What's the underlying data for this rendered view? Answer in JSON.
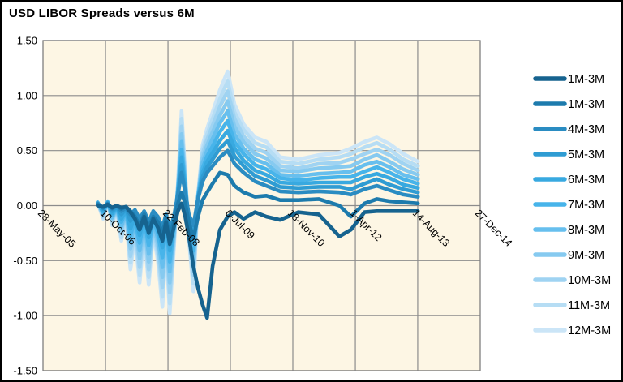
{
  "title": "USD LIBOR Spreads versus 6M",
  "colors": {
    "plot_bg": "#fdf6e4",
    "grid": "#8c8c8c",
    "plot_border": "#7f7f7f",
    "outer_border": "#000000",
    "text": "#000000"
  },
  "chart_data": {
    "type": "line",
    "title": "USD LIBOR Spreads versus 6M",
    "xlabel": "",
    "ylabel": "",
    "grid": true,
    "legend_position": "right",
    "ylim": [
      -1.5,
      1.5
    ],
    "xlim": [
      2005.403,
      2014.986
    ],
    "y_tick_labels": [
      "1.50",
      "1.00",
      "0.50",
      "0.00",
      "-0.50",
      "-1.00",
      "-1.50"
    ],
    "y_tick_values": [
      1.5,
      1.0,
      0.5,
      0.0,
      -0.5,
      -1.0,
      -1.5
    ],
    "x_tick_labels": [
      "28-May-05",
      "10-Oct-06",
      "22-Feb-08",
      "6-Jul-09",
      "18-Nov-10",
      "1-Apr-12",
      "14-Aug-13",
      "27-Dec-14"
    ],
    "x_tick_values": [
      2005.403,
      2006.773,
      2008.142,
      2009.51,
      2010.879,
      2012.249,
      2013.616,
      2014.986
    ],
    "x": [
      2006.6,
      2006.72,
      2006.82,
      2006.92,
      2007.02,
      2007.12,
      2007.22,
      2007.32,
      2007.42,
      2007.52,
      2007.62,
      2007.72,
      2007.82,
      2007.92,
      2008.02,
      2008.1,
      2008.18,
      2008.27,
      2008.36,
      2008.44,
      2008.52,
      2008.6,
      2008.7,
      2008.8,
      2008.9,
      2009.0,
      2009.12,
      2009.28,
      2009.45,
      2009.6,
      2009.8,
      2010.05,
      2010.3,
      2010.6,
      2011.0,
      2011.45,
      2011.9,
      2012.15,
      2012.45,
      2012.72,
      2013.0,
      2013.3,
      2013.62
    ],
    "series": [
      {
        "name": "1M-3M",
        "color": "#16638f",
        "values": [
          0.0,
          -0.01,
          0.01,
          -0.02,
          0.0,
          -0.02,
          -0.01,
          -0.06,
          -0.12,
          -0.22,
          -0.1,
          -0.25,
          -0.12,
          -0.2,
          -0.32,
          -0.15,
          -0.35,
          -0.2,
          -0.05,
          0.02,
          -0.1,
          -0.28,
          -0.55,
          -0.75,
          -0.9,
          -1.02,
          -0.55,
          -0.22,
          -0.1,
          -0.06,
          -0.12,
          -0.06,
          -0.1,
          -0.13,
          -0.06,
          -0.08,
          -0.28,
          -0.22,
          -0.06,
          -0.05,
          -0.05,
          -0.05,
          -0.05
        ]
      },
      {
        "name": "1M-3M",
        "color": "#1d7bad",
        "values": [
          0.01,
          -0.02,
          0.01,
          -0.02,
          0.0,
          -0.03,
          -0.01,
          -0.05,
          -0.1,
          -0.18,
          -0.08,
          -0.2,
          -0.1,
          -0.15,
          -0.25,
          -0.12,
          -0.28,
          -0.15,
          0.02,
          0.12,
          0.02,
          -0.15,
          -0.3,
          -0.1,
          0.05,
          0.12,
          0.2,
          0.3,
          0.28,
          0.18,
          0.12,
          0.08,
          0.09,
          0.05,
          0.05,
          0.06,
          0.0,
          -0.1,
          0.02,
          0.06,
          0.04,
          0.03,
          0.02
        ]
      },
      {
        "name": "4M-3M",
        "color": "#2a8cc2",
        "values": [
          0.02,
          -0.02,
          0.02,
          -0.03,
          0.0,
          -0.05,
          -0.02,
          -0.08,
          -0.04,
          -0.12,
          -0.05,
          -0.15,
          -0.05,
          -0.1,
          -0.2,
          -0.08,
          -0.22,
          -0.1,
          0.1,
          0.3,
          0.12,
          -0.08,
          -0.18,
          0.06,
          0.22,
          0.3,
          0.36,
          0.44,
          0.5,
          0.38,
          0.3,
          0.22,
          0.18,
          0.13,
          0.12,
          0.13,
          0.12,
          0.1,
          0.15,
          0.18,
          0.14,
          0.1,
          0.08
        ]
      },
      {
        "name": "5M-3M",
        "color": "#2f9cd3",
        "values": [
          0.02,
          -0.03,
          0.02,
          -0.05,
          -0.01,
          -0.08,
          -0.03,
          -0.14,
          -0.07,
          -0.19,
          -0.08,
          -0.22,
          -0.08,
          -0.15,
          -0.29,
          -0.11,
          -0.32,
          -0.14,
          0.11,
          0.37,
          0.14,
          -0.11,
          -0.26,
          0.07,
          0.26,
          0.35,
          0.42,
          0.52,
          0.59,
          0.45,
          0.36,
          0.27,
          0.23,
          0.17,
          0.16,
          0.17,
          0.17,
          0.15,
          0.2,
          0.24,
          0.19,
          0.15,
          0.12
        ]
      },
      {
        "name": "6M-3M",
        "color": "#38a9e0",
        "values": [
          0.02,
          -0.05,
          0.03,
          -0.07,
          -0.01,
          -0.12,
          -0.04,
          -0.21,
          -0.1,
          -0.27,
          -0.1,
          -0.29,
          -0.1,
          -0.2,
          -0.38,
          -0.15,
          -0.41,
          -0.18,
          0.13,
          0.44,
          0.17,
          -0.14,
          -0.33,
          0.07,
          0.3,
          0.4,
          0.48,
          0.59,
          0.68,
          0.52,
          0.41,
          0.32,
          0.28,
          0.21,
          0.2,
          0.21,
          0.21,
          0.21,
          0.26,
          0.29,
          0.25,
          0.19,
          0.16
        ]
      },
      {
        "name": "7M-3M",
        "color": "#47b4ea",
        "values": [
          0.03,
          -0.06,
          0.03,
          -0.09,
          -0.02,
          -0.15,
          -0.05,
          -0.27,
          -0.13,
          -0.34,
          -0.13,
          -0.36,
          -0.13,
          -0.25,
          -0.47,
          -0.18,
          -0.51,
          -0.21,
          0.14,
          0.51,
          0.19,
          -0.16,
          -0.41,
          0.08,
          0.34,
          0.45,
          0.54,
          0.67,
          0.77,
          0.58,
          0.47,
          0.37,
          0.33,
          0.25,
          0.23,
          0.25,
          0.26,
          0.26,
          0.31,
          0.35,
          0.3,
          0.24,
          0.2
        ]
      },
      {
        "name": "8M-3M",
        "color": "#67bfee",
        "values": [
          0.03,
          -0.07,
          0.03,
          -0.11,
          -0.02,
          -0.19,
          -0.06,
          -0.33,
          -0.16,
          -0.41,
          -0.15,
          -0.44,
          -0.15,
          -0.3,
          -0.56,
          -0.21,
          -0.6,
          -0.25,
          0.15,
          0.58,
          0.21,
          -0.19,
          -0.48,
          0.08,
          0.39,
          0.5,
          0.61,
          0.75,
          0.86,
          0.65,
          0.52,
          0.42,
          0.38,
          0.28,
          0.27,
          0.29,
          0.3,
          0.31,
          0.37,
          0.4,
          0.35,
          0.28,
          0.24
        ]
      },
      {
        "name": "9M-3M",
        "color": "#86caf0",
        "values": [
          0.03,
          -0.08,
          0.03,
          -0.12,
          -0.03,
          -0.22,
          -0.07,
          -0.39,
          -0.19,
          -0.48,
          -0.18,
          -0.51,
          -0.18,
          -0.35,
          -0.65,
          -0.25,
          -0.7,
          -0.29,
          0.16,
          0.65,
          0.23,
          -0.22,
          -0.56,
          0.09,
          0.43,
          0.55,
          0.67,
          0.82,
          0.95,
          0.72,
          0.58,
          0.47,
          0.43,
          0.32,
          0.31,
          0.34,
          0.35,
          0.36,
          0.42,
          0.46,
          0.4,
          0.33,
          0.28
        ]
      },
      {
        "name": "10M-3M",
        "color": "#9fd3f2",
        "values": [
          0.03,
          -0.1,
          0.04,
          -0.14,
          -0.03,
          -0.25,
          -0.08,
          -0.46,
          -0.22,
          -0.56,
          -0.2,
          -0.58,
          -0.2,
          -0.4,
          -0.74,
          -0.28,
          -0.79,
          -0.33,
          0.18,
          0.72,
          0.26,
          -0.24,
          -0.63,
          0.09,
          0.47,
          0.6,
          0.73,
          0.9,
          1.04,
          0.79,
          0.63,
          0.52,
          0.48,
          0.36,
          0.34,
          0.38,
          0.39,
          0.42,
          0.47,
          0.51,
          0.46,
          0.38,
          0.32
        ]
      },
      {
        "name": "11M-3M",
        "color": "#b6ddf4",
        "values": [
          0.03,
          -0.11,
          0.04,
          -0.16,
          -0.04,
          -0.29,
          -0.09,
          -0.52,
          -0.25,
          -0.63,
          -0.23,
          -0.65,
          -0.23,
          -0.45,
          -0.83,
          -0.32,
          -0.89,
          -0.36,
          0.19,
          0.79,
          0.28,
          -0.27,
          -0.71,
          0.1,
          0.51,
          0.65,
          0.79,
          0.97,
          1.13,
          0.85,
          0.69,
          0.57,
          0.53,
          0.4,
          0.38,
          0.42,
          0.44,
          0.47,
          0.53,
          0.57,
          0.51,
          0.42,
          0.36
        ]
      },
      {
        "name": "12M-3M",
        "color": "#cbe5f7",
        "values": [
          0.03,
          -0.12,
          0.04,
          -0.18,
          -0.04,
          -0.32,
          -0.1,
          -0.58,
          -0.28,
          -0.7,
          -0.25,
          -0.72,
          -0.25,
          -0.5,
          -0.92,
          -0.35,
          -0.98,
          -0.4,
          0.2,
          0.86,
          0.3,
          -0.3,
          -0.78,
          0.1,
          0.55,
          0.7,
          0.85,
          1.05,
          1.22,
          0.92,
          0.74,
          0.62,
          0.58,
          0.44,
          0.42,
          0.46,
          0.48,
          0.52,
          0.58,
          0.62,
          0.56,
          0.47,
          0.4
        ]
      }
    ]
  }
}
